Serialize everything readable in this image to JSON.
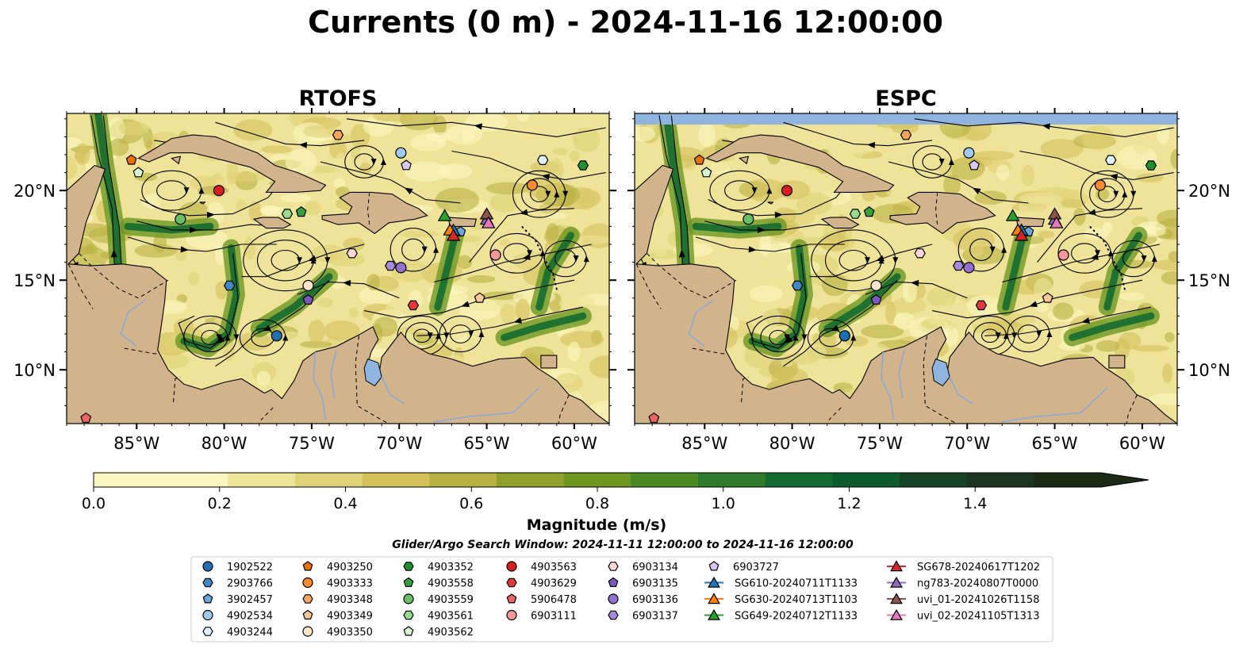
{
  "title": "Currents (0 m) - 2024-11-16 12:00:00",
  "panels": [
    {
      "title": "RTOFS",
      "lat_ticks_side": "left"
    },
    {
      "title": "ESPC",
      "lat_ticks_side": "right"
    }
  ],
  "map_extent": {
    "lon_min": -89,
    "lon_max": -58,
    "lat_min": 7,
    "lat_max": 24.3
  },
  "lon_ticks": [
    {
      "value": -85,
      "label": "85°W"
    },
    {
      "value": -80,
      "label": "80°W"
    },
    {
      "value": -75,
      "label": "75°W"
    },
    {
      "value": -70,
      "label": "70°W"
    },
    {
      "value": -65,
      "label": "65°W"
    },
    {
      "value": -60,
      "label": "60°W"
    }
  ],
  "lat_ticks": [
    {
      "value": 10,
      "label": "10°N"
    },
    {
      "value": 15,
      "label": "15°N"
    },
    {
      "value": 20,
      "label": "20°N"
    }
  ],
  "colors": {
    "land": "#d2b48c",
    "lake": "#8fb4e0",
    "rivers": "#8aa8d8",
    "nodata": "#8fb4e0",
    "field": [
      "#fbf6c0",
      "#efe39a",
      "#e0d277",
      "#d3c15b",
      "#b9b043",
      "#8fa12c",
      "#6e9722",
      "#4b8a23",
      "#2f7a2a",
      "#136b31",
      "#0c5a2d",
      "#164325",
      "#1c3520",
      "#1b2a15"
    ]
  },
  "colorbar": {
    "label": "Magnitude (m/s)",
    "min": 0.0,
    "max": 1.6,
    "ticks": [
      {
        "value": 0.0,
        "label": "0.0"
      },
      {
        "value": 0.2,
        "label": "0.2"
      },
      {
        "value": 0.4,
        "label": "0.4"
      },
      {
        "value": 0.6,
        "label": "0.6"
      },
      {
        "value": 0.8,
        "label": "0.8"
      },
      {
        "value": 1.0,
        "label": "1.0"
      },
      {
        "value": 1.2,
        "label": "1.2"
      },
      {
        "value": 1.4,
        "label": "1.4"
      }
    ],
    "extend": "max"
  },
  "search_window": "Glider/Argo Search Window: 2024-11-11 12:00:00 to 2024-11-16 12:00:00",
  "legend_columns": [
    [
      {
        "label": "1902522",
        "marker": "circle",
        "color": "#1f6fb4"
      },
      {
        "label": "2903766",
        "marker": "hexagon",
        "color": "#3f88c5"
      },
      {
        "label": "3902457",
        "marker": "pentagon",
        "color": "#6aa8de"
      },
      {
        "label": "4902534",
        "marker": "circle",
        "color": "#9fcaef"
      },
      {
        "label": "4903244",
        "marker": "hexagon",
        "color": "#dff0fb"
      }
    ],
    [
      {
        "label": "4903250",
        "marker": "pentagon",
        "color": "#e8700f"
      },
      {
        "label": "4903333",
        "marker": "circle",
        "color": "#f58a30"
      },
      {
        "label": "4903348",
        "marker": "hexagon",
        "color": "#f7a45e"
      },
      {
        "label": "4903349",
        "marker": "pentagon",
        "color": "#f9c89a"
      },
      {
        "label": "4903350",
        "marker": "circle",
        "color": "#fde5cc"
      }
    ],
    [
      {
        "label": "4903352",
        "marker": "hexagon",
        "color": "#1f8f2c"
      },
      {
        "label": "4903558",
        "marker": "pentagon",
        "color": "#36a13e"
      },
      {
        "label": "4903559",
        "marker": "circle",
        "color": "#66c067"
      },
      {
        "label": "4903561",
        "marker": "hexagon",
        "color": "#96d98f"
      },
      {
        "label": "4903562",
        "marker": "pentagon",
        "color": "#d6f5cf"
      }
    ],
    [
      {
        "label": "4903563",
        "marker": "circle",
        "color": "#d62020"
      },
      {
        "label": "4903629",
        "marker": "hexagon",
        "color": "#e23a3a"
      },
      {
        "label": "5906478",
        "marker": "pentagon",
        "color": "#ec6464"
      },
      {
        "label": "6903111",
        "marker": "circle",
        "color": "#f49898"
      }
    ],
    [
      {
        "label": "6903134",
        "marker": "hexagon",
        "color": "#fcd6d6"
      },
      {
        "label": "6903135",
        "marker": "pentagon",
        "color": "#7e57c2"
      },
      {
        "label": "6903136",
        "marker": "circle",
        "color": "#9270cf"
      },
      {
        "label": "6903137",
        "marker": "hexagon",
        "color": "#a58bdb"
      }
    ],
    [
      {
        "label": "6903727",
        "marker": "pentagon",
        "color": "#d6c8f0"
      },
      {
        "label": "SG610-20240711T1133",
        "marker": "triangle",
        "color": "#1f77b4"
      },
      {
        "label": "SG630-20240713T1103",
        "marker": "triangle",
        "color": "#ff7f0e"
      },
      {
        "label": "SG649-20240712T1133",
        "marker": "triangle",
        "color": "#2ca02c"
      }
    ],
    [
      {
        "label": "SG678-20240617T1202",
        "marker": "triangle",
        "color": "#d62728"
      },
      {
        "label": "ng783-20240807T0000",
        "marker": "triangle",
        "color": "#9467bd"
      },
      {
        "label": "uvi_01-20241026T1158",
        "marker": "triangle",
        "color": "#8c564b"
      },
      {
        "label": "uvi_02-20241105T1313",
        "marker": "triangle",
        "color": "#e377c2"
      }
    ]
  ],
  "floats": [
    {
      "id": "1902522",
      "lon": -77,
      "lat": 11.9
    },
    {
      "id": "2903766",
      "lon": -79.7,
      "lat": 14.7
    },
    {
      "id": "3902457",
      "lon": -66.5,
      "lat": 17.7
    },
    {
      "id": "4902534",
      "lon": -69.9,
      "lat": 22.1
    },
    {
      "id": "4903244",
      "lon": -61.8,
      "lat": 21.7
    },
    {
      "id": "4903250",
      "lon": -85.3,
      "lat": 21.7
    },
    {
      "id": "4903333",
      "lon": -62.4,
      "lat": 20.3
    },
    {
      "id": "4903348",
      "lon": -73.5,
      "lat": 23.1
    },
    {
      "id": "4903349",
      "lon": -65.4,
      "lat": 14.0
    },
    {
      "id": "4903350",
      "lon": -75.2,
      "lat": 14.7
    },
    {
      "id": "4903352",
      "lon": -59.5,
      "lat": 21.4
    },
    {
      "id": "4903558",
      "lon": -75.6,
      "lat": 18.8
    },
    {
      "id": "4903559",
      "lon": -82.5,
      "lat": 18.4
    },
    {
      "id": "4903561",
      "lon": -76.4,
      "lat": 18.7
    },
    {
      "id": "4903562",
      "lon": -84.9,
      "lat": 21.0
    },
    {
      "id": "4903563",
      "lon": -80.3,
      "lat": 20.0
    },
    {
      "id": "4903629",
      "lon": -69.2,
      "lat": 13.6
    },
    {
      "id": "5906478",
      "lon": -87.9,
      "lat": 7.3
    },
    {
      "id": "6903111",
      "lon": -64.5,
      "lat": 16.4
    },
    {
      "id": "6903134",
      "lon": -72.7,
      "lat": 16.5
    },
    {
      "id": "6903135",
      "lon": -75.2,
      "lat": 13.9
    },
    {
      "id": "6903136",
      "lon": -69.9,
      "lat": 15.7
    },
    {
      "id": "6903137",
      "lon": -70.5,
      "lat": 15.8
    },
    {
      "id": "6903727",
      "lon": -69.6,
      "lat": 21.4
    },
    {
      "id": "SG610-20240711T1133",
      "lon": -66.9,
      "lat": 17.8
    },
    {
      "id": "SG630-20240713T1103",
      "lon": -67.1,
      "lat": 17.8
    },
    {
      "id": "SG649-20240712T1133",
      "lon": -67.4,
      "lat": 18.6
    },
    {
      "id": "SG678-20240617T1202",
      "lon": -66.9,
      "lat": 17.5
    },
    {
      "id": "ng783-20240807T0000",
      "lon": -65.0,
      "lat": 18.4
    },
    {
      "id": "uvi_01-20241026T1158",
      "lon": -65.0,
      "lat": 18.7
    },
    {
      "id": "uvi_02-20241105T1313",
      "lon": -64.9,
      "lat": 18.2
    }
  ]
}
